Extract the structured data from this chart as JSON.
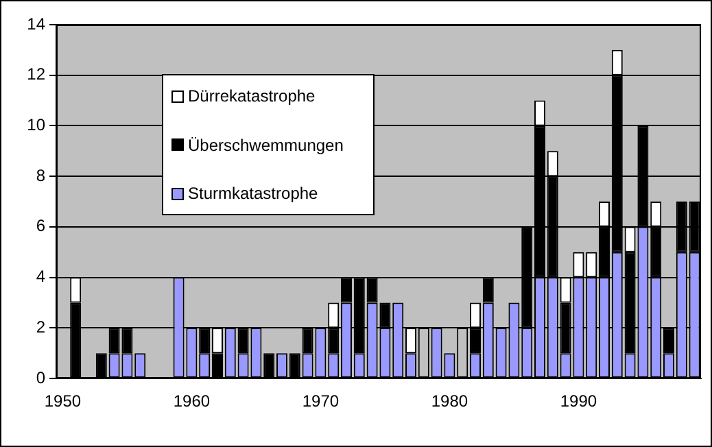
{
  "chart_data": {
    "type": "bar",
    "stacked": true,
    "categories": [
      "1950",
      null,
      null,
      null,
      null,
      null,
      null,
      null,
      null,
      null,
      "1960",
      null,
      null,
      null,
      null,
      null,
      null,
      null,
      null,
      null,
      "1970",
      null,
      null,
      null,
      null,
      null,
      null,
      null,
      null,
      null,
      "1980",
      null,
      null,
      null,
      null,
      null,
      null,
      null,
      null,
      null,
      "1990",
      null,
      null,
      null,
      null,
      null,
      null,
      null,
      null,
      null
    ],
    "series": [
      {
        "name": "Sturmkatastrophe",
        "color": "#9999ff",
        "values": [
          null,
          null,
          null,
          null,
          1,
          1,
          1,
          null,
          null,
          4,
          2,
          1,
          null,
          2,
          1,
          2,
          null,
          1,
          null,
          1,
          2,
          1,
          3,
          1,
          3,
          2,
          3,
          1,
          null,
          2,
          1,
          null,
          1,
          3,
          2,
          3,
          2,
          4,
          4,
          1,
          4,
          4,
          4,
          5,
          1,
          6,
          4,
          1,
          5,
          5
        ]
      },
      {
        "name": "Überschwemmungen",
        "color": "#000000",
        "values": [
          null,
          3,
          null,
          1,
          1,
          1,
          null,
          null,
          null,
          null,
          null,
          1,
          1,
          null,
          1,
          null,
          1,
          null,
          1,
          1,
          null,
          1,
          1,
          3,
          1,
          1,
          null,
          null,
          null,
          null,
          null,
          null,
          1,
          1,
          null,
          null,
          4,
          6,
          4,
          2,
          null,
          null,
          2,
          7,
          4,
          4,
          2,
          1,
          2,
          2
        ]
      },
      {
        "name": "Dürrekatastrophe",
        "color": "#ffffff",
        "values": [
          null,
          1,
          null,
          null,
          null,
          null,
          null,
          null,
          null,
          null,
          null,
          null,
          1,
          null,
          null,
          null,
          null,
          null,
          null,
          null,
          null,
          1,
          null,
          null,
          null,
          null,
          null,
          1,
          2,
          null,
          null,
          2,
          1,
          null,
          null,
          null,
          null,
          1,
          1,
          1,
          1,
          1,
          1,
          1,
          1,
          null,
          1,
          null,
          null,
          null
        ],
        "colors": [
          "#ffffff",
          "#ffffff",
          "#ffffff",
          "#ffffff",
          "#ffffff",
          "#ffffff",
          "#ffffff",
          "#ffffff",
          "#ffffff",
          "#ffffff",
          "#ffffff",
          "#ffffff",
          "#ffffff",
          "#ffffff",
          "#ffffff",
          "#ffffff",
          "#ffffff",
          "#ffffff",
          "#ffffff",
          "#ffffff",
          "#ffffff",
          "#ffffff",
          "#ffffff",
          "#ffffff",
          "#ffffff",
          "#ffffff",
          "#ffffff",
          "#ffffff",
          "#c0c0c0",
          "#ffffff",
          "#ffffff",
          "#c0c0c0",
          "#ffffff",
          "#ffffff",
          "#ffffff",
          "#ffffff",
          "#ffffff",
          "#ffffff",
          "#ffffff",
          "#ffffff",
          "#ffffff",
          "#ffffff",
          "#ffffff",
          "#ffffff",
          "#ffffff",
          "#ffffff",
          "#ffffff",
          "#ffffff",
          "#ffffff",
          "#ffffff"
        ]
      }
    ],
    "ylim": [
      0,
      14
    ],
    "yticks": [
      0,
      2,
      4,
      6,
      8,
      10,
      12,
      14
    ],
    "grid": "y",
    "legend": "top"
  }
}
